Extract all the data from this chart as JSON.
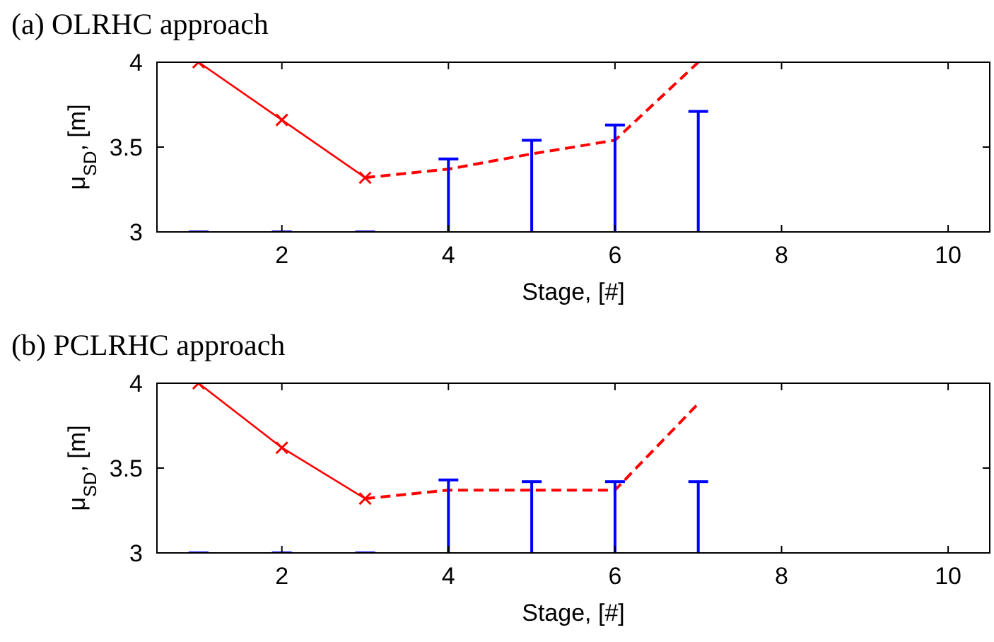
{
  "chart_data": [
    {
      "type": "line",
      "title": "(a) OLRHC approach",
      "xlabel": "Stage, [#]",
      "ylabel": "μ$_{SD}$, [m]",
      "xlim": [
        0.5,
        10.5
      ],
      "xticks": [
        2,
        4,
        6,
        8,
        10
      ],
      "ylim": [
        3,
        4
      ],
      "yticks": [
        3,
        3.5,
        4
      ],
      "grid": false,
      "series": [
        {
          "color": "#ff0000",
          "marker": "cross",
          "line_style": "solid",
          "x": [
            1,
            2,
            3
          ],
          "values": [
            4,
            3.66,
            3.32
          ]
        },
        {
          "color": "#ff0000",
          "marker": "none",
          "line_style": "dashed",
          "x": [
            3,
            4,
            5,
            6,
            7
          ],
          "values": [
            3.32,
            3.37,
            3.46,
            3.54,
            4
          ]
        },
        {
          "type": "bar",
          "color": "#0000ff",
          "x": [
            1,
            2,
            3,
            4,
            5,
            6,
            7
          ],
          "values": [
            3,
            3,
            3,
            3.43,
            3.54,
            3.63,
            3.71
          ]
        }
      ]
    },
    {
      "type": "line",
      "title": "(b) PCLRHC approach",
      "xlabel": "Stage, [#]",
      "ylabel": "μ$_{SD}$, [m]",
      "xlim": [
        0.5,
        10.5
      ],
      "xticks": [
        2,
        4,
        6,
        8,
        10
      ],
      "ylim": [
        3,
        4
      ],
      "yticks": [
        3,
        3.5,
        4
      ],
      "grid": false,
      "series": [
        {
          "color": "#ff0000",
          "marker": "cross",
          "line_style": "solid",
          "x": [
            1,
            2,
            3
          ],
          "values": [
            4,
            3.62,
            3.32
          ]
        },
        {
          "color": "#ff0000",
          "marker": "none",
          "line_style": "dashed",
          "x": [
            3,
            4,
            5,
            6,
            7
          ],
          "values": [
            3.32,
            3.37,
            3.37,
            3.37,
            3.88
          ]
        },
        {
          "type": "bar",
          "color": "#0000ff",
          "x": [
            1,
            2,
            3,
            4,
            5,
            6,
            7
          ],
          "values": [
            3,
            3,
            3,
            3.43,
            3.42,
            3.42,
            3.42
          ]
        }
      ]
    }
  ]
}
